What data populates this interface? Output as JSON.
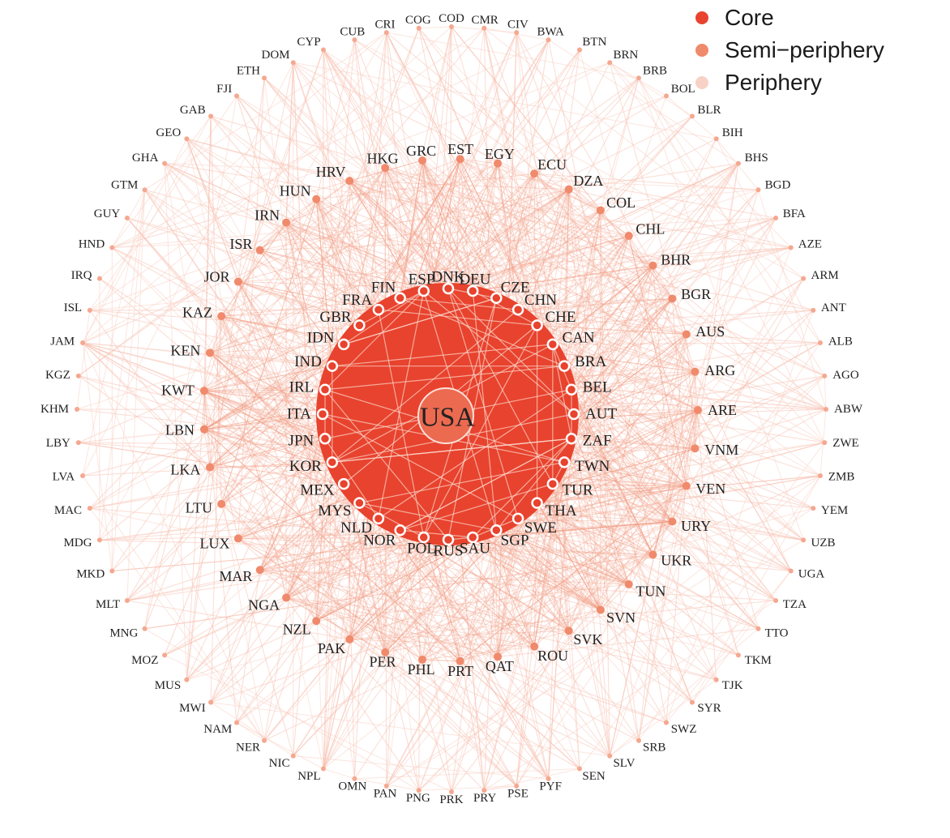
{
  "colors": {
    "core": "#e8432e",
    "semi_periphery": "#f08a6c",
    "periphery": "#f8d2c6"
  },
  "legend": [
    {
      "label": "Core",
      "group": "core"
    },
    {
      "label": "Semi−periphery",
      "group": "semi_periphery"
    },
    {
      "label": "Periphery",
      "group": "periphery"
    }
  ],
  "hub": "USA",
  "core": [
    "AUT",
    "BEL",
    "BRA",
    "CAN",
    "CHE",
    "CHN",
    "CZE",
    "DEU",
    "DNK",
    "ESP",
    "FIN",
    "FRA",
    "GBR",
    "IDN",
    "IND",
    "IRL",
    "ITA",
    "JPN",
    "KOR",
    "MEX",
    "MYS",
    "NLD",
    "NOR",
    "POL",
    "RUS",
    "SAU",
    "SGP",
    "SWE",
    "THA",
    "TUR",
    "TWN",
    "ZAF"
  ],
  "semi_periphery": [
    "ARE",
    "ARG",
    "AUS",
    "BGR",
    "BHR",
    "CHL",
    "COL",
    "DZA",
    "ECU",
    "EGY",
    "EST",
    "GRC",
    "HKG",
    "HRV",
    "HUN",
    "IRN",
    "ISR",
    "JOR",
    "KAZ",
    "KEN",
    "KWT",
    "LBN",
    "LKA",
    "LTU",
    "LUX",
    "MAR",
    "NGA",
    "NZL",
    "PAK",
    "PER",
    "PHL",
    "PRT",
    "QAT",
    "ROU",
    "SVK",
    "SVN",
    "TUN",
    "UKR",
    "URY",
    "VEN",
    "VNM"
  ],
  "periphery": [
    "ABW",
    "AGO",
    "ALB",
    "ANT",
    "ARM",
    "AZE",
    "BFA",
    "BGD",
    "BHS",
    "BIH",
    "BLR",
    "BOL",
    "BRB",
    "BRN",
    "BTN",
    "BWA",
    "CIV",
    "CMR",
    "COD",
    "COG",
    "CRI",
    "CUB",
    "CYP",
    "DOM",
    "ETH",
    "FJI",
    "GAB",
    "GEO",
    "GHA",
    "GTM",
    "GUY",
    "HND",
    "IRQ",
    "ISL",
    "JAM",
    "KGZ",
    "KHM",
    "LBY",
    "LVA",
    "MAC",
    "MDG",
    "MKD",
    "MLT",
    "MNG",
    "MOZ",
    "MUS",
    "MWI",
    "NAM",
    "NER",
    "NIC",
    "NPL",
    "OMN",
    "PAN",
    "PNG",
    "PRK",
    "PRY",
    "PSE",
    "PYF",
    "SEN",
    "SLV",
    "SRB",
    "SWZ",
    "SYR",
    "TJK",
    "TKM",
    "TTO",
    "TZA",
    "UGA",
    "UZB",
    "YEM",
    "ZMB",
    "ZWE"
  ]
}
